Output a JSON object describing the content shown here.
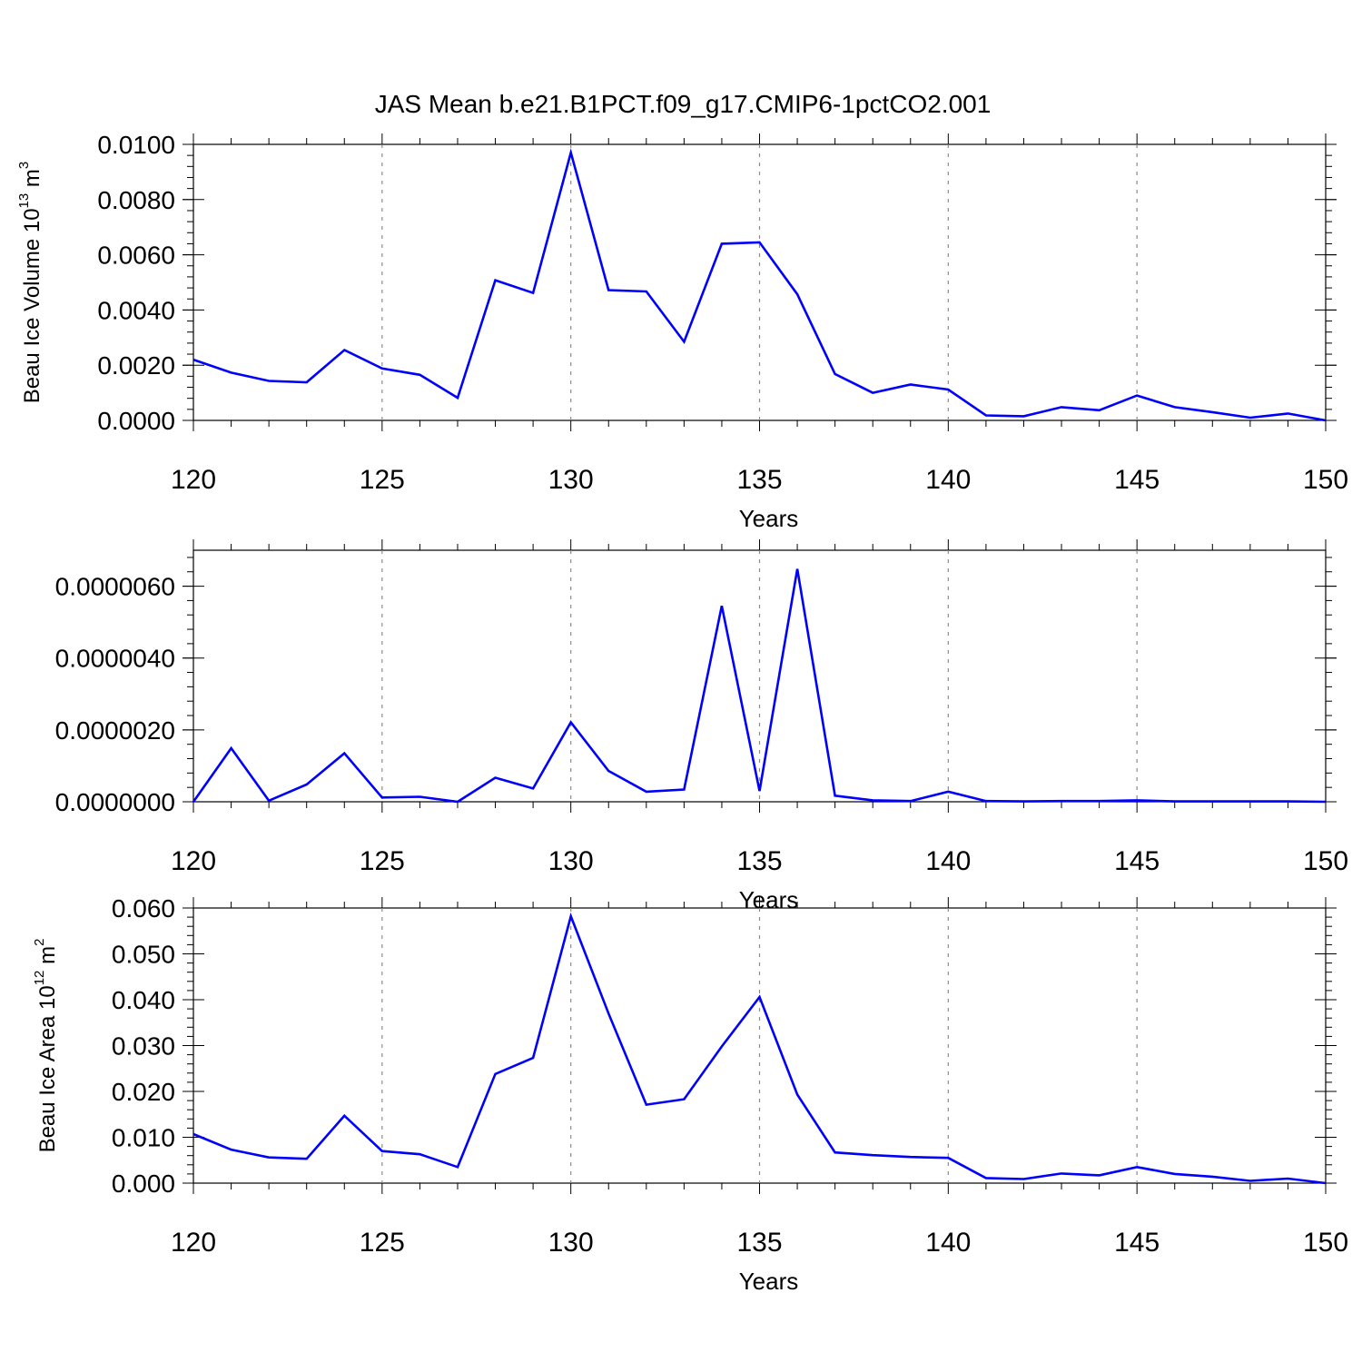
{
  "title": "JAS Mean b.e21.B1PCT.f09_g17.CMIP6-1pctCO2.001",
  "line_color": "#0000ff",
  "grid_color": "#8c8c8c",
  "chart_data": [
    {
      "type": "line",
      "ylabel": "Beau Ice Volume 10",
      "ylabel_exp": "13",
      "ylabel_unit": " m",
      "ylabel_unit_exp": "3",
      "xlabel": "Years",
      "xlim": [
        120,
        150
      ],
      "ylim": [
        0,
        0.01
      ],
      "xticks": [
        "120",
        "125",
        "130",
        "135",
        "140",
        "145",
        "150"
      ],
      "yticks": [
        {
          "v": 0,
          "label": "0.0000"
        },
        {
          "v": 0.002,
          "label": "0.0020"
        },
        {
          "v": 0.004,
          "label": "0.0040"
        },
        {
          "v": 0.006,
          "label": "0.0060"
        },
        {
          "v": 0.008,
          "label": "0.0080"
        },
        {
          "v": 0.01,
          "label": "0.0100"
        }
      ],
      "x": [
        120,
        121,
        122,
        123,
        124,
        125,
        126,
        127,
        128,
        129,
        130,
        131,
        132,
        133,
        134,
        135,
        136,
        137,
        138,
        139,
        140,
        141,
        142,
        143,
        144,
        145,
        146,
        147,
        148,
        149,
        150
      ],
      "y": [
        0.0022,
        0.00173,
        0.00143,
        0.00138,
        0.00255,
        0.00188,
        0.00165,
        0.00082,
        0.00508,
        0.00462,
        0.0097,
        0.00472,
        0.00467,
        0.00285,
        0.0064,
        0.00645,
        0.00457,
        0.00168,
        0.001,
        0.0013,
        0.00112,
        0.00018,
        0.00015,
        0.00048,
        0.00037,
        0.0009,
        0.00048,
        0.0003,
        0.0001,
        0.00025,
        0.0
      ]
    },
    {
      "type": "line",
      "ylabel": "",
      "xlabel": "Years",
      "xlim": [
        120,
        150
      ],
      "ylim": [
        0,
        7e-06
      ],
      "xticks": [
        "120",
        "125",
        "130",
        "135",
        "140",
        "145",
        "150"
      ],
      "yticks": [
        {
          "v": 0,
          "label": "0.0000000"
        },
        {
          "v": 2e-06,
          "label": "0.0000020"
        },
        {
          "v": 4e-06,
          "label": "0.0000040"
        },
        {
          "v": 6e-06,
          "label": "0.0000060"
        }
      ],
      "x": [
        120,
        121,
        122,
        123,
        124,
        125,
        126,
        127,
        128,
        129,
        130,
        131,
        132,
        133,
        134,
        135,
        136,
        137,
        138,
        139,
        140,
        141,
        142,
        143,
        144,
        145,
        146,
        147,
        148,
        149,
        150
      ],
      "y": [
        0.0,
        1.49e-06,
        3e-08,
        4.8e-07,
        1.35e-06,
        1.2e-07,
        1.4e-07,
        0.0,
        6.7e-07,
        3.7e-07,
        2.21e-06,
        8.6e-07,
        2.8e-07,
        3.4e-07,
        5.45e-06,
        3e-07,
        6.48e-06,
        1.7e-07,
        4e-08,
        2e-08,
        2.8e-07,
        2e-08,
        1e-08,
        2e-08,
        2e-08,
        4e-08,
        1e-08,
        1e-08,
        1e-08,
        1e-08,
        0.0
      ]
    },
    {
      "type": "line",
      "ylabel": "Beau Ice Area 10",
      "ylabel_exp": "12",
      "ylabel_unit": " m",
      "ylabel_unit_exp": "2",
      "xlabel": "Years",
      "xlim": [
        120,
        150
      ],
      "ylim": [
        0,
        0.06
      ],
      "xticks": [
        "120",
        "125",
        "130",
        "135",
        "140",
        "145",
        "150"
      ],
      "yticks": [
        {
          "v": 0,
          "label": "0.000"
        },
        {
          "v": 0.01,
          "label": "0.010"
        },
        {
          "v": 0.02,
          "label": "0.020"
        },
        {
          "v": 0.03,
          "label": "0.030"
        },
        {
          "v": 0.04,
          "label": "0.040"
        },
        {
          "v": 0.05,
          "label": "0.050"
        },
        {
          "v": 0.06,
          "label": "0.060"
        }
      ],
      "x": [
        120,
        121,
        122,
        123,
        124,
        125,
        126,
        127,
        128,
        129,
        130,
        131,
        132,
        133,
        134,
        135,
        136,
        137,
        138,
        139,
        140,
        141,
        142,
        143,
        144,
        145,
        146,
        147,
        148,
        149,
        150
      ],
      "y": [
        0.0107,
        0.0073,
        0.0056,
        0.0053,
        0.0147,
        0.007,
        0.0063,
        0.0035,
        0.0238,
        0.0273,
        0.0582,
        0.037,
        0.0171,
        0.0183,
        0.0298,
        0.0406,
        0.0193,
        0.0067,
        0.0061,
        0.0057,
        0.0055,
        0.0011,
        0.0009,
        0.0021,
        0.0017,
        0.0035,
        0.002,
        0.0014,
        0.0005,
        0.001,
        0.0
      ]
    }
  ]
}
